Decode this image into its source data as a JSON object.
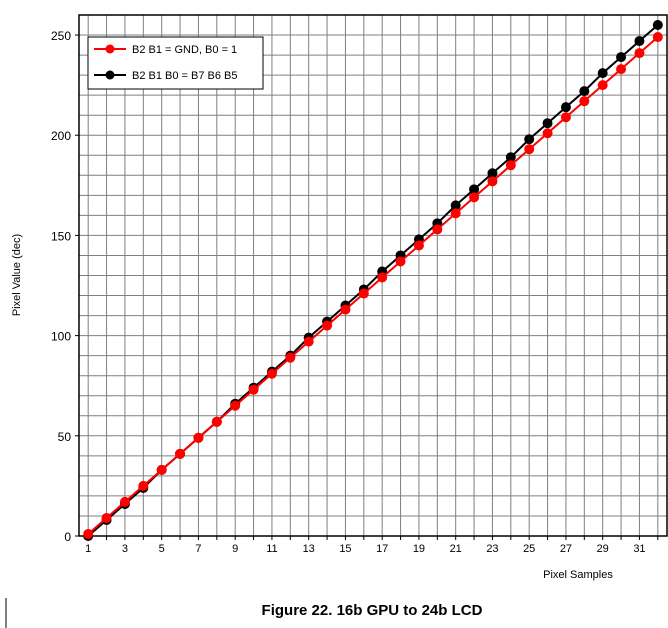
{
  "chart_data": {
    "type": "line",
    "title": "",
    "xlabel": "Pixel Samples",
    "ylabel": "Pixel Value (dec)",
    "caption": "Figure 22. 16b GPU to 24b LCD",
    "xlim": [
      0.5,
      32.5
    ],
    "ylim": [
      0,
      260
    ],
    "x_tick_labels": [
      "1",
      "3",
      "5",
      "7",
      "9",
      "11",
      "13",
      "15",
      "17",
      "19",
      "21",
      "23",
      "25",
      "27",
      "29",
      "31"
    ],
    "y_tick_labels": [
      "0",
      "50",
      "100",
      "150",
      "200",
      "250"
    ],
    "grid": true,
    "legend_position": "top-left",
    "x": [
      1,
      2,
      3,
      4,
      5,
      6,
      7,
      8,
      9,
      10,
      11,
      12,
      13,
      14,
      15,
      16,
      17,
      18,
      19,
      20,
      21,
      22,
      23,
      24,
      25,
      26,
      27,
      28,
      29,
      30,
      31,
      32
    ],
    "series": [
      {
        "name": "B2 B1 = GND, B0 = 1",
        "color": "#ff0000",
        "values": [
          1,
          9,
          17,
          25,
          33,
          41,
          49,
          57,
          65,
          73,
          81,
          89,
          97,
          105,
          113,
          121,
          129,
          137,
          145,
          153,
          161,
          169,
          177,
          185,
          193,
          201,
          209,
          217,
          225,
          233,
          241,
          249
        ]
      },
      {
        "name": "B2 B1 B0 = B7 B6 B5",
        "color": "#000000",
        "values": [
          0,
          8,
          16,
          24,
          33,
          41,
          49,
          57,
          66,
          74,
          82,
          90,
          99,
          107,
          115,
          123,
          132,
          140,
          148,
          156,
          165,
          173,
          181,
          189,
          198,
          206,
          214,
          222,
          231,
          239,
          247,
          255
        ]
      }
    ]
  }
}
